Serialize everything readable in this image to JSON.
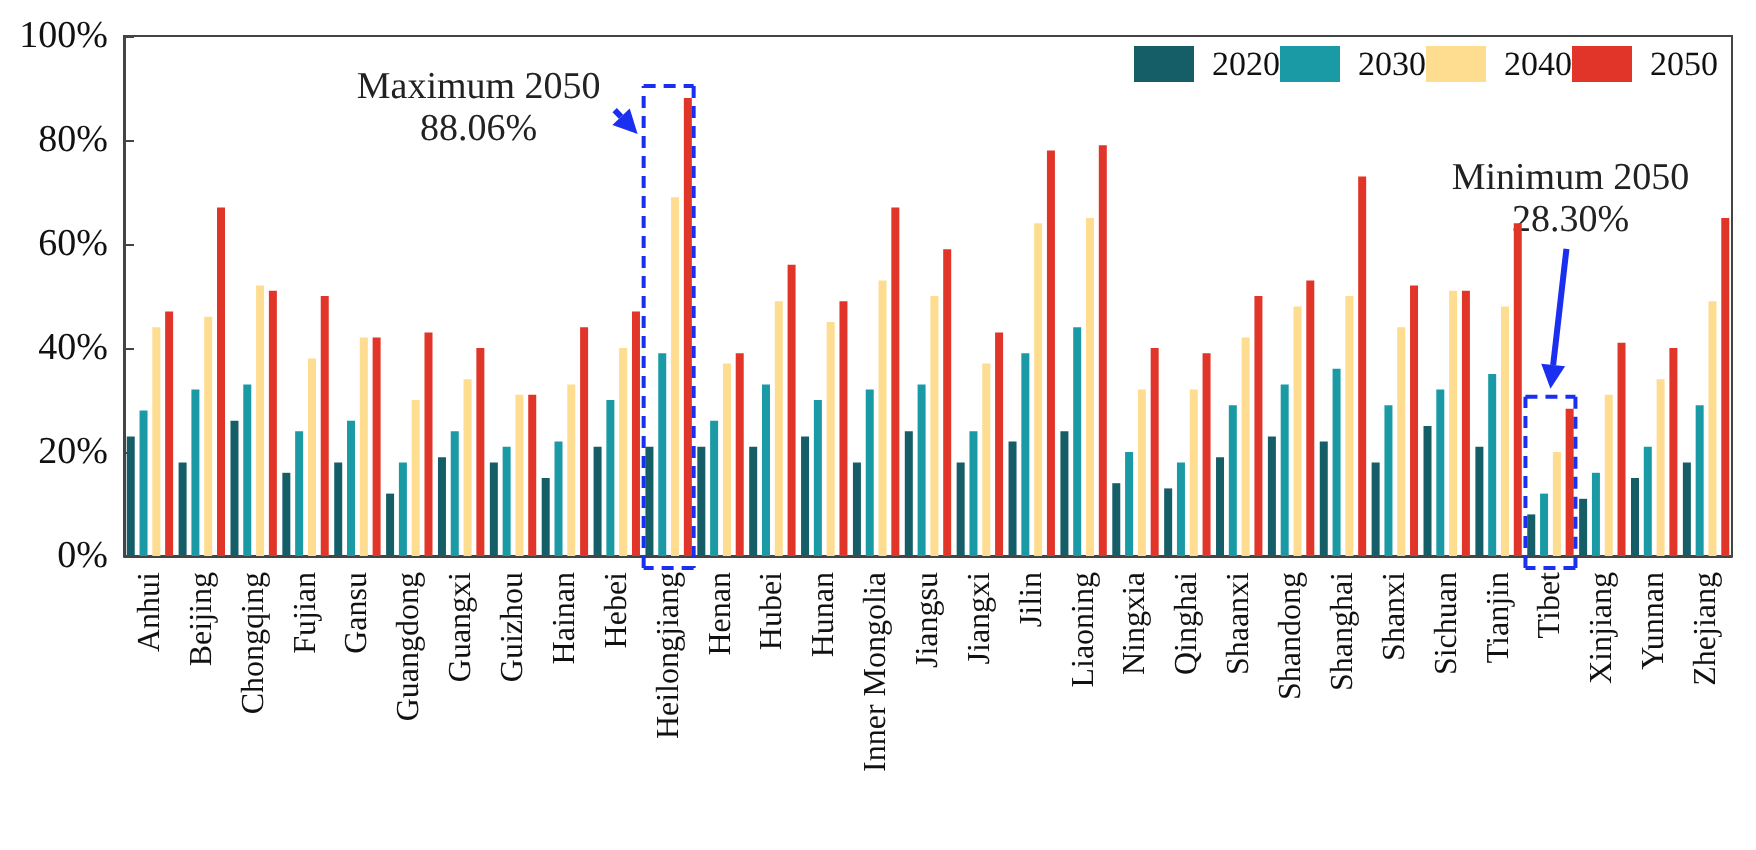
{
  "chart_data": {
    "type": "bar",
    "categories": [
      "Anhui",
      "Beijing",
      "Chongqing",
      "Fujian",
      "Gansu",
      "Guangdong",
      "Guangxi",
      "Guizhou",
      "Hainan",
      "Hebei",
      "Heilongjiang",
      "Henan",
      "Hubei",
      "Hunan",
      "Inner Mongolia",
      "Jiangsu",
      "Jiangxi",
      "Jilin",
      "Liaoning",
      "Ningxia",
      "Qinghai",
      "Shaanxi",
      "Shandong",
      "Shanghai",
      "Shanxi",
      "Sichuan",
      "Tianjin",
      "Tibet",
      "Xinjiang",
      "Yunnan",
      "Zhejiang"
    ],
    "series": [
      {
        "name": "2020",
        "color": "#155e68",
        "values": [
          23,
          18,
          26,
          16,
          18,
          12,
          19,
          18,
          15,
          21,
          21,
          21,
          21,
          23,
          18,
          24,
          18,
          22,
          24,
          14,
          13,
          19,
          23,
          22,
          18,
          25,
          21,
          8,
          11,
          15,
          18
        ]
      },
      {
        "name": "2030",
        "color": "#1a9aa5",
        "values": [
          28,
          32,
          33,
          24,
          26,
          18,
          24,
          21,
          22,
          30,
          39,
          26,
          33,
          30,
          32,
          33,
          24,
          39,
          44,
          20,
          18,
          29,
          33,
          36,
          29,
          32,
          35,
          12,
          16,
          21,
          29
        ]
      },
      {
        "name": "2040",
        "color": "#fedc90",
        "values": [
          44,
          46,
          52,
          38,
          42,
          30,
          34,
          31,
          33,
          40,
          69,
          37,
          49,
          45,
          53,
          50,
          37,
          64,
          65,
          32,
          32,
          42,
          48,
          50,
          44,
          51,
          48,
          20,
          31,
          34,
          49
        ]
      },
      {
        "name": "2050",
        "color": "#e03528",
        "values": [
          47,
          67,
          51,
          50,
          42,
          43,
          40,
          31,
          44,
          47,
          88.06,
          39,
          56,
          49,
          67,
          59,
          43,
          78,
          79,
          40,
          39,
          50,
          53,
          73,
          52,
          51,
          64,
          28.3,
          41,
          40,
          65
        ]
      }
    ],
    "ylim": [
      0,
      100
    ],
    "yticks": [
      {
        "value": 0,
        "label": "0%"
      },
      {
        "value": 20,
        "label": "20%"
      },
      {
        "value": 40,
        "label": "40%"
      },
      {
        "value": 60,
        "label": "60%"
      },
      {
        "value": 80,
        "label": "80%"
      },
      {
        "value": 100,
        "label": "100%"
      }
    ],
    "annotations": [
      "Maximum 2050\n88.06%",
      "Minimum 2050\n28.30%"
    ],
    "grid": false,
    "legend": "top right"
  }
}
